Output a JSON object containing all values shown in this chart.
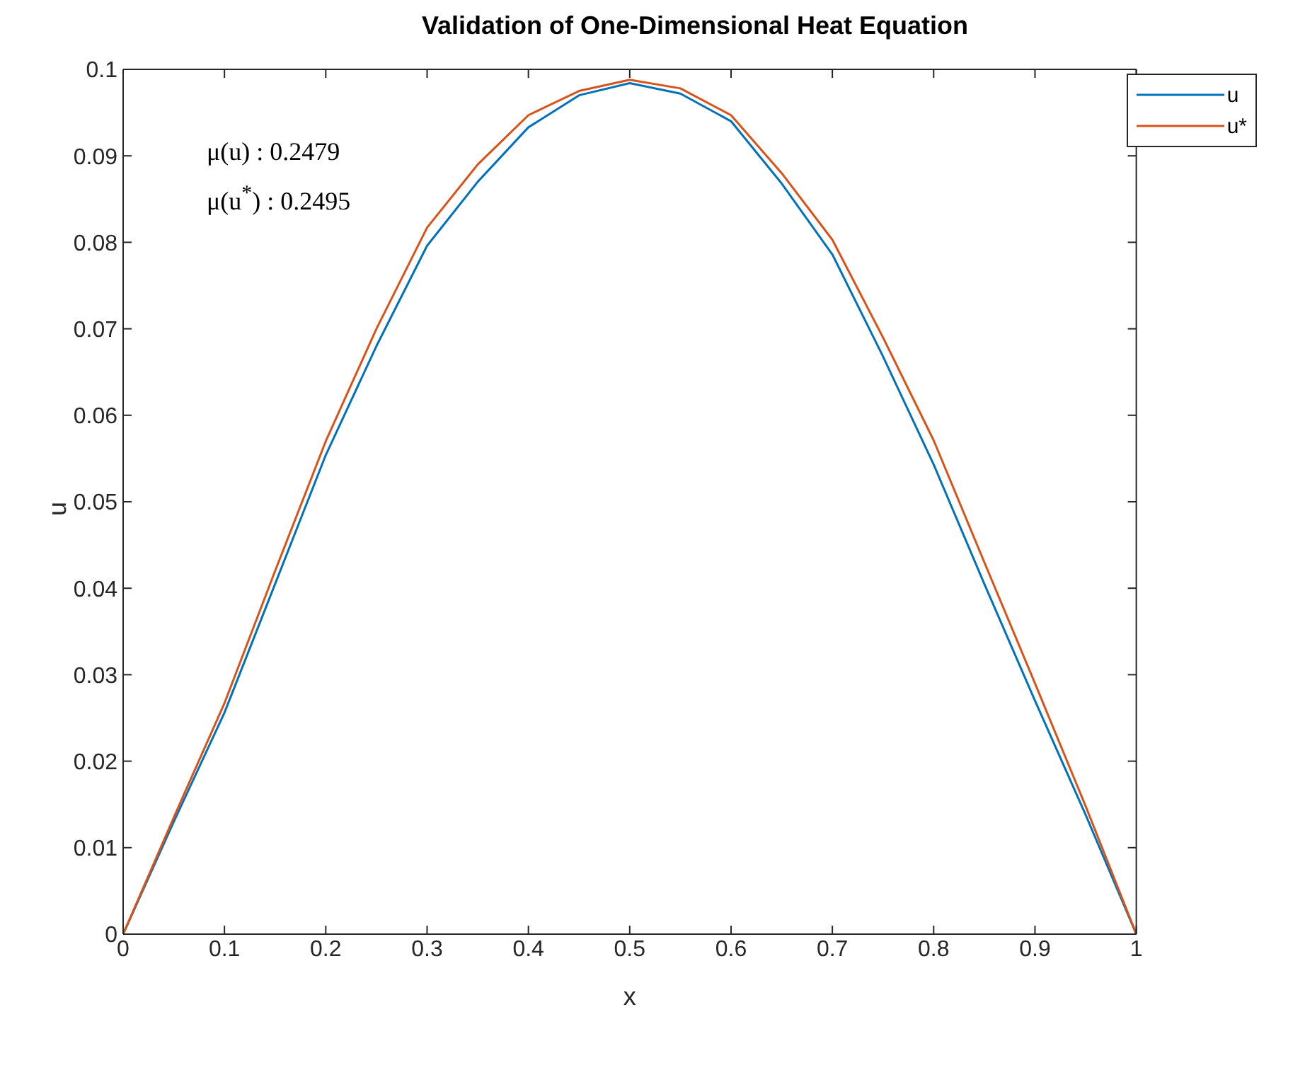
{
  "chart_data": {
    "type": "line",
    "title": "Validation of One-Dimensional Heat Equation",
    "xlabel": "x",
    "ylabel": "u",
    "x": [
      0,
      0.05,
      0.1,
      0.15,
      0.2,
      0.25,
      0.3,
      0.35,
      0.4,
      0.45,
      0.5,
      0.55,
      0.6,
      0.65,
      0.7,
      0.75,
      0.8,
      0.85,
      0.9,
      0.95,
      1
    ],
    "series": [
      {
        "name": "u",
        "color": "#0072bd",
        "values": [
          0,
          0.013,
          0.0256,
          0.0405,
          0.0554,
          0.068,
          0.0796,
          0.087,
          0.0933,
          0.097,
          0.0984,
          0.0972,
          0.094,
          0.0868,
          0.0786,
          0.0668,
          0.0543,
          0.0405,
          0.027,
          0.0138,
          0
        ]
      },
      {
        "name": "u*",
        "color": "#d95319",
        "values": [
          0,
          0.0135,
          0.0267,
          0.042,
          0.057,
          0.07,
          0.0817,
          0.089,
          0.0947,
          0.0975,
          0.0988,
          0.0978,
          0.0947,
          0.088,
          0.0803,
          0.069,
          0.0571,
          0.043,
          0.029,
          0.0148,
          0
        ]
      }
    ],
    "xlim": [
      0,
      1
    ],
    "xticks": [
      0,
      0.1,
      0.2,
      0.3,
      0.4,
      0.5,
      0.6,
      0.7,
      0.8,
      0.9,
      1
    ],
    "ylim": [
      0,
      0.1
    ],
    "yticks": [
      0,
      0.01,
      0.02,
      0.03,
      0.04,
      0.05,
      0.06,
      0.07,
      0.08,
      0.09,
      0.1
    ],
    "annotations": [
      "μ(u) : 0.2479",
      "μ(u$^{*}$) : 0.2495"
    ],
    "legend": "top right",
    "grid": false,
    "marker": "none",
    "line_style": "solid"
  }
}
